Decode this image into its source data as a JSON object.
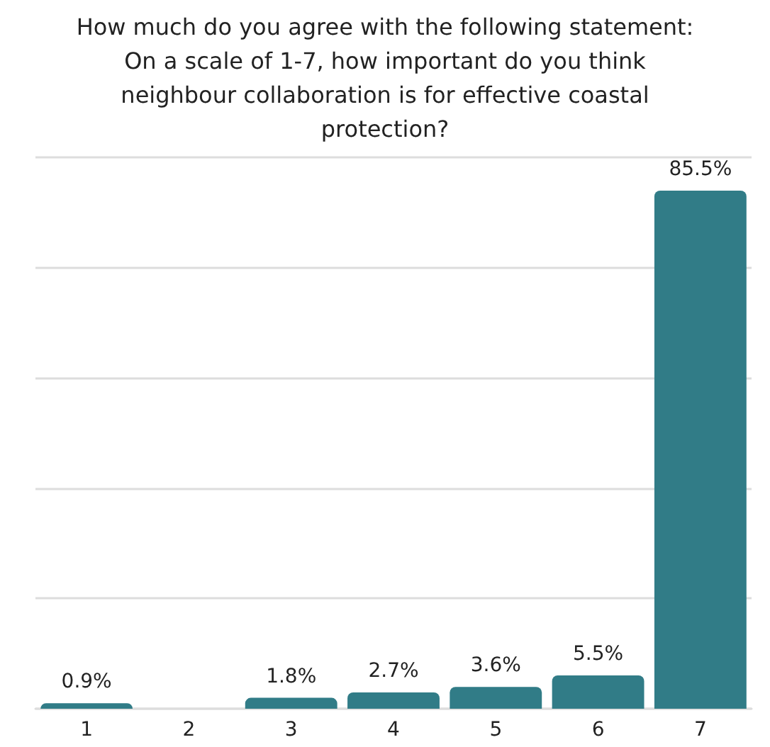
{
  "chart_data": {
    "type": "bar",
    "title": "How much do you agree with the following statement:\nOn a scale of 1-7, how important do you think\nneighbour collaboration is for effective coastal\nprotection?",
    "categories": [
      "1",
      "2",
      "3",
      "4",
      "5",
      "6",
      "7"
    ],
    "values": [
      0.9,
      0,
      1.8,
      2.7,
      3.6,
      5.5,
      85.5
    ],
    "value_labels": [
      "0.9%",
      null,
      "1.8%",
      "2.7%",
      "3.6%",
      "5.5%",
      "85.5%"
    ],
    "color": "#317c87",
    "ylim": [
      0,
      91
    ],
    "yticks": [
      {
        "value": 0,
        "label": null
      },
      {
        "value": 18.2,
        "label": null
      },
      {
        "value": 36.4,
        "label": null
      },
      {
        "value": 54.6,
        "label": null
      },
      {
        "value": 72.8,
        "label": null
      },
      {
        "value": 91,
        "label": null
      }
    ],
    "grid": "y",
    "tick_labels": "x"
  }
}
